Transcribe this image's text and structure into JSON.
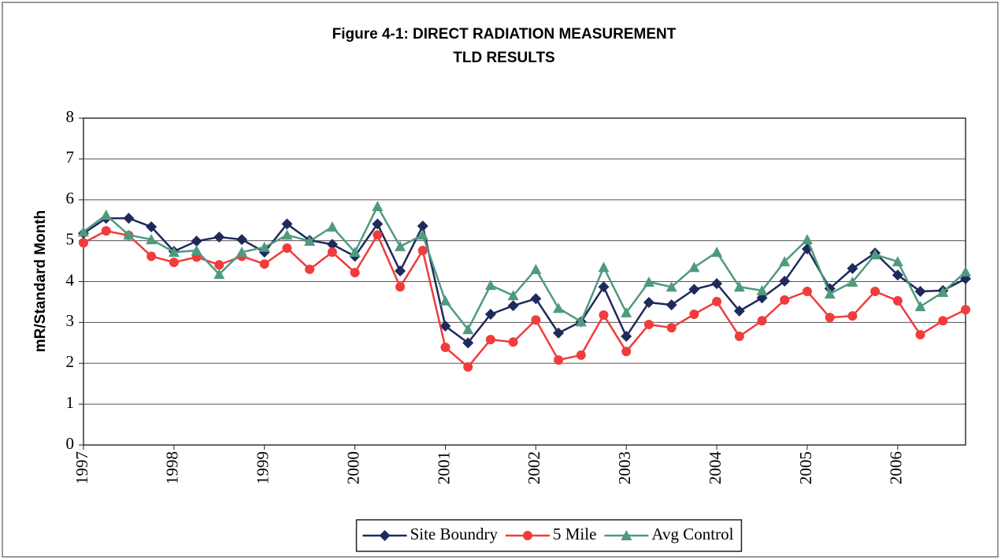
{
  "chart_data": {
    "type": "line",
    "title": "Figure 4-1: DIRECT RADIATION MEASUREMENT",
    "subtitle": "TLD RESULTS",
    "y_label": "mR/Standard Month",
    "x": [
      1997,
      1997.25,
      1997.5,
      1997.75,
      1998,
      1998.25,
      1998.5,
      1998.75,
      1999,
      1999.25,
      1999.5,
      1999.75,
      2000,
      2000.25,
      2000.5,
      2000.75,
      2001,
      2001.25,
      2001.5,
      2001.75,
      2002,
      2002.25,
      2002.5,
      2002.75,
      2003,
      2003.25,
      2003.5,
      2003.75,
      2004,
      2004.25,
      2004.5,
      2004.75,
      2005,
      2005.25,
      2005.5,
      2005.75,
      2006,
      2006.25,
      2006.5,
      2006.75
    ],
    "xlim": [
      1997,
      2006.75
    ],
    "xticks": [
      1997,
      1998,
      1999,
      2000,
      2001,
      2002,
      2003,
      2004,
      2005,
      2006
    ],
    "ylim": [
      0,
      8
    ],
    "yticks": [
      0,
      1,
      2,
      3,
      4,
      5,
      6,
      7,
      8
    ],
    "grid": true,
    "legend": "bottom",
    "series": [
      {
        "name": "Site Boundry",
        "color": "#1f2a5c",
        "marker": "diamond",
        "values": [
          5.18,
          5.55,
          5.55,
          5.34,
          4.74,
          4.99,
          5.09,
          5.03,
          4.72,
          5.41,
          5.01,
          4.91,
          4.62,
          5.41,
          4.26,
          5.36,
          2.91,
          2.5,
          3.2,
          3.41,
          3.58,
          2.74,
          3.02,
          3.87,
          2.66,
          3.49,
          3.43,
          3.81,
          3.95,
          3.28,
          3.6,
          4.01,
          4.8,
          3.83,
          4.32,
          4.7,
          4.16,
          3.76,
          3.78,
          4.07
        ]
      },
      {
        "name": "5 Mile",
        "color": "#f03c3c",
        "marker": "circle",
        "values": [
          4.95,
          5.24,
          5.13,
          4.62,
          4.47,
          4.6,
          4.41,
          4.62,
          4.43,
          4.82,
          4.3,
          4.72,
          4.22,
          5.14,
          3.87,
          4.76,
          2.39,
          1.91,
          2.58,
          2.52,
          3.06,
          2.08,
          2.2,
          3.18,
          2.29,
          2.95,
          2.87,
          3.2,
          3.51,
          2.66,
          3.04,
          3.55,
          3.76,
          3.12,
          3.16,
          3.76,
          3.53,
          2.7,
          3.04,
          3.31
        ]
      },
      {
        "name": "Avg Control",
        "color": "#4f9a7f",
        "marker": "triangle",
        "values": [
          5.22,
          5.63,
          5.14,
          5.03,
          4.72,
          4.76,
          4.18,
          4.72,
          4.84,
          5.14,
          4.99,
          5.34,
          4.72,
          5.84,
          4.86,
          5.14,
          3.53,
          2.83,
          3.91,
          3.66,
          4.3,
          3.35,
          3.02,
          4.35,
          3.24,
          3.99,
          3.87,
          4.35,
          4.72,
          3.87,
          3.78,
          4.49,
          5.03,
          3.7,
          3.99,
          4.66,
          4.49,
          3.39,
          3.74,
          4.24
        ]
      }
    ]
  }
}
